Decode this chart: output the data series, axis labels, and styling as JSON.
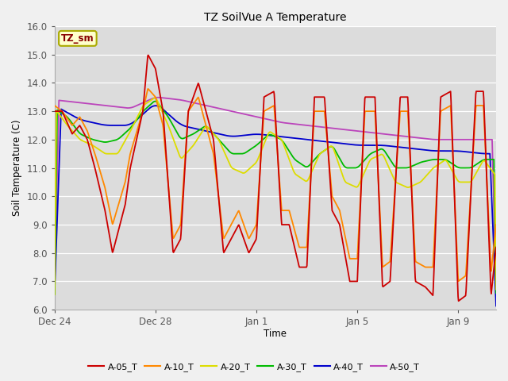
{
  "title": "TZ SoilVue A Temperature",
  "ylabel": "Soil Temperature (C)",
  "xlabel": "Time",
  "ylim": [
    6.0,
    16.0
  ],
  "yticks": [
    6.0,
    7.0,
    8.0,
    9.0,
    10.0,
    11.0,
    12.0,
    13.0,
    14.0,
    15.0,
    16.0
  ],
  "bg_color": "#e8e8e8",
  "plot_bg": "#dcdcdc",
  "series_colors": {
    "A-05_T": "#cc0000",
    "A-10_T": "#ff8800",
    "A-20_T": "#dddd00",
    "A-30_T": "#00bb00",
    "A-40_T": "#0000cc",
    "A-50_T": "#bb44bb"
  },
  "legend_label": "TZ_sm",
  "legend_box_color": "#ffffcc",
  "legend_box_edge": "#aaaa00",
  "legend_text_color": "#880000",
  "x_tick_labels": [
    "Dec 24",
    "Dec 28",
    "Jan 1",
    "Jan 5",
    "Jan 9"
  ],
  "x_tick_positions": [
    0,
    4,
    8,
    12,
    16
  ],
  "xlim": [
    0,
    17.5
  ]
}
